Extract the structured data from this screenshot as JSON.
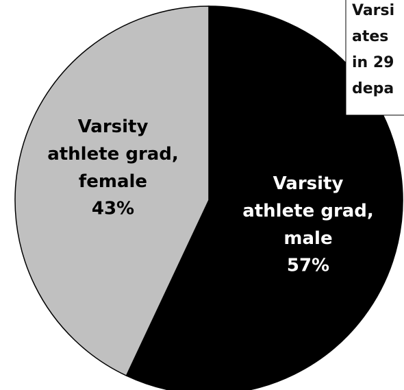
{
  "chart_data": {
    "type": "pie",
    "title_lines": [
      "Varsi",
      "ates",
      "in 29",
      "depa"
    ],
    "categories": [
      "Varsity athlete grad, male",
      "Varsity athlete grad, female"
    ],
    "values": [
      57,
      43
    ],
    "value_labels": [
      "57%",
      "43%"
    ],
    "colors": [
      "#000000",
      "#c0c0c0"
    ],
    "label_colors": [
      "#ffffff",
      "#000000"
    ]
  }
}
